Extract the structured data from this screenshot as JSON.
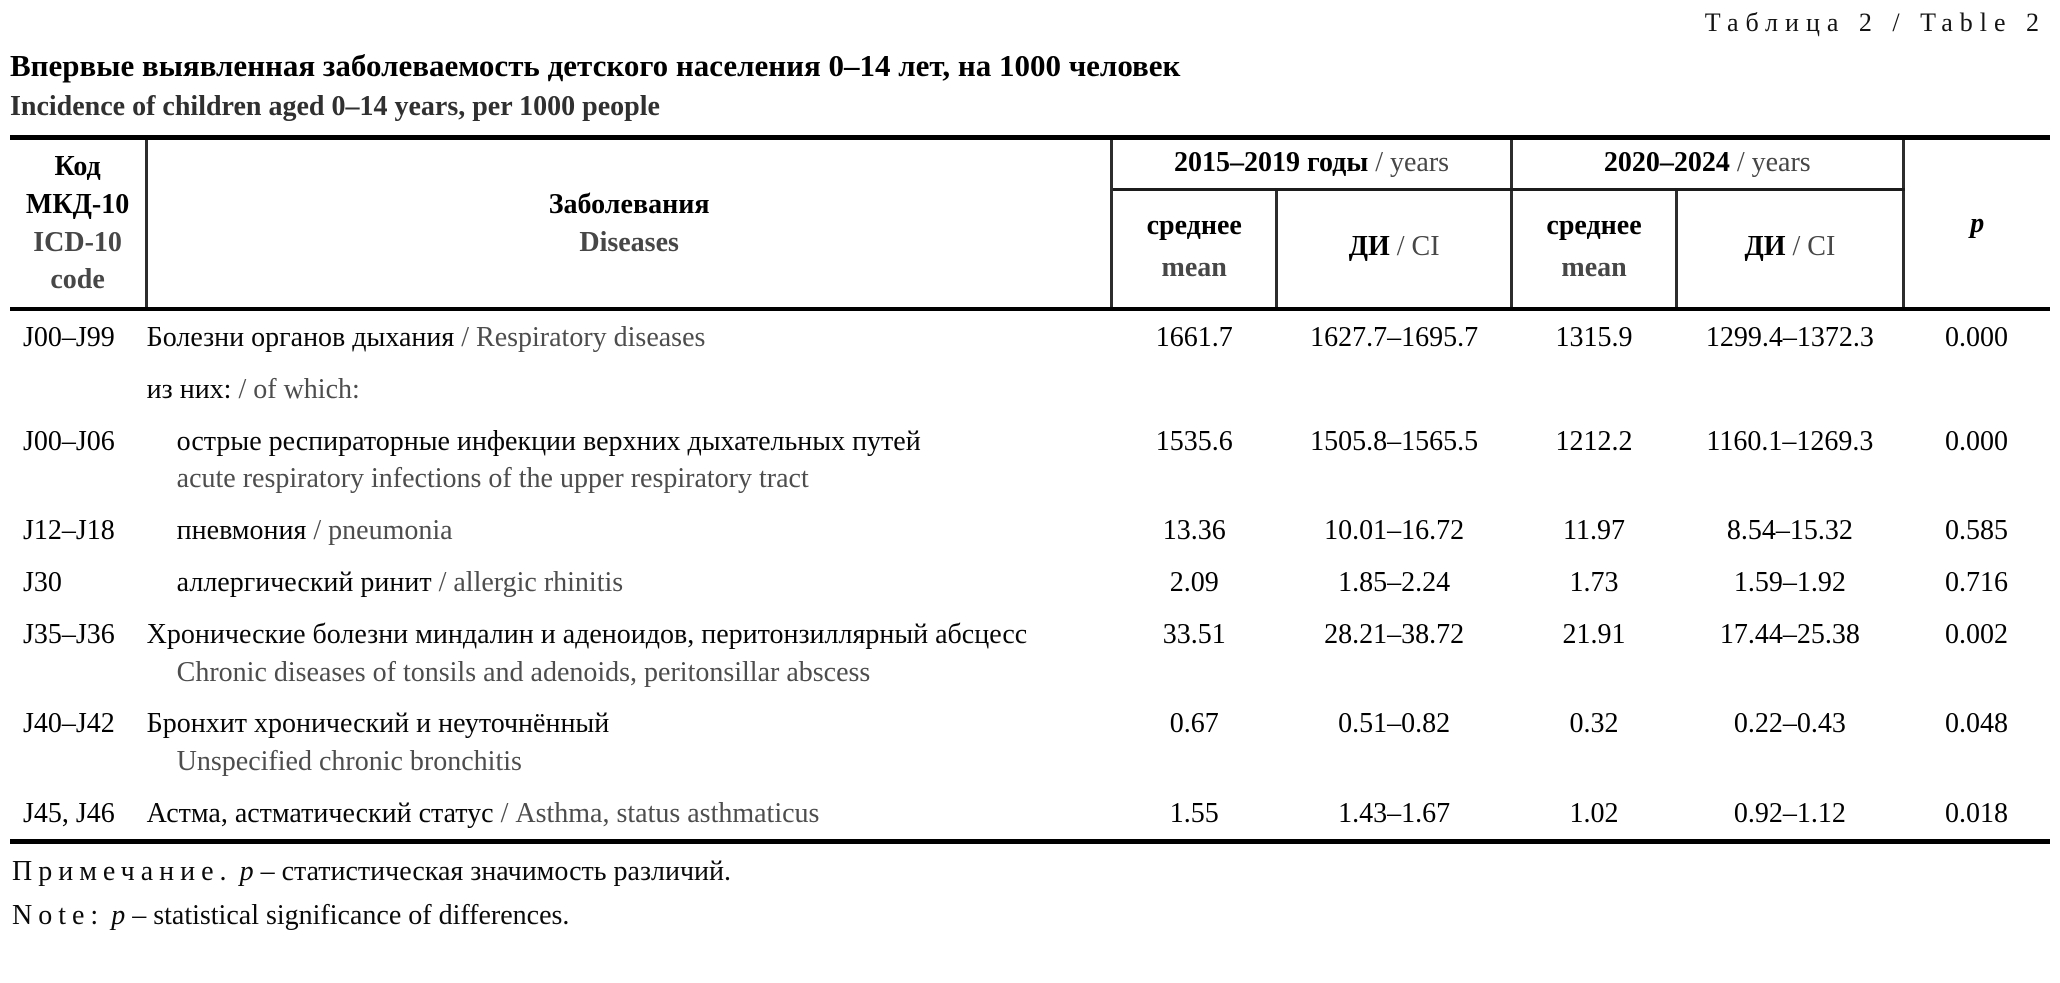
{
  "caption": {
    "label": "Таблица 2 / Table 2"
  },
  "title": {
    "ru": "Впервые выявленная заболеваемость детского населения 0–14 лет, на 1000 человек",
    "en": "Incidence of children aged 0–14 years, per 1000 people"
  },
  "header": {
    "code_ru": "Код МКД-10",
    "code_en": "ICD-10 code",
    "diseases_ru": "Заболевания",
    "diseases_en": "Diseases",
    "period1_bold": "2015–2019 годы",
    "period1_rest": " / years",
    "period2_bold": "2020–2024",
    "period2_rest": " / years",
    "mean_ru": "среднее",
    "mean_en": "mean",
    "ci_bold": "ДИ",
    "ci_rest": " / CI",
    "p_label": "p"
  },
  "table": {
    "rows": [
      {
        "code": "J00–J99",
        "ru": "Болезни органов дыхания",
        "en": "Respiratory diseases",
        "en_inline": true,
        "indent": false,
        "mean1": "1661.7",
        "ci1": "1627.7–1695.7",
        "mean2": "1315.9",
        "ci2": "1299.4–1372.3",
        "p": "0.000"
      },
      {
        "code": "",
        "ru": "из них:",
        "en": "of which:",
        "en_inline": true,
        "indent": false,
        "mean1": "",
        "ci1": "",
        "mean2": "",
        "ci2": "",
        "p": ""
      },
      {
        "code": "J00–J06",
        "ru": "острые респираторные инфекции верхних дыхательных путей",
        "en": "acute respiratory infections of the upper respiratory tract",
        "en_inline": false,
        "indent": true,
        "mean1": "1535.6",
        "ci1": "1505.8–1565.5",
        "mean2": "1212.2",
        "ci2": "1160.1–1269.3",
        "p": "0.000"
      },
      {
        "code": "J12–J18",
        "ru": "пневмония",
        "en": "pneumonia",
        "en_inline": true,
        "indent": true,
        "mean1": "13.36",
        "ci1": "10.01–16.72",
        "mean2": "11.97",
        "ci2": "8.54–15.32",
        "p": "0.585"
      },
      {
        "code": "J30",
        "ru": "аллергический ринит",
        "en": "allergic rhinitis",
        "en_inline": true,
        "indent": true,
        "mean1": "2.09",
        "ci1": "1.85–2.24",
        "mean2": "1.73",
        "ci2": "1.59–1.92",
        "p": "0.716"
      },
      {
        "code": "J35–J36",
        "ru": "Хронические болезни миндалин и аденоидов, перитонзиллярный абсцесс",
        "en": "Chronic diseases of tonsils and adenoids, peritonsillar abscess",
        "en_inline": false,
        "indent": false,
        "mean1": "33.51",
        "ci1": "28.21–38.72",
        "mean2": "21.91",
        "ci2": "17.44–25.38",
        "p": "0.002"
      },
      {
        "code": "J40–J42",
        "ru": "Бронхит хронический и неуточнённый",
        "en": "Unspecified chronic bronchitis",
        "en_inline": false,
        "indent": false,
        "mean1": "0.67",
        "ci1": "0.51–0.82",
        "mean2": "0.32",
        "ci2": "0.22–0.43",
        "p": "0.048"
      },
      {
        "code": "J45, J46",
        "ru": "Астма, астматический статус",
        "en": "Asthma, status asthmaticus",
        "en_inline": true,
        "indent": false,
        "mean1": "1.55",
        "ci1": "1.43–1.67",
        "mean2": "1.02",
        "ci2": "0.92–1.12",
        "p": "0.018"
      }
    ]
  },
  "notes": {
    "ru_label": "Примечание.",
    "ru_p": "p",
    "ru_text": "– статистическая значимость различий.",
    "en_label": "Note:",
    "en_p": "p",
    "en_text": "– statistical significance of differences."
  }
}
